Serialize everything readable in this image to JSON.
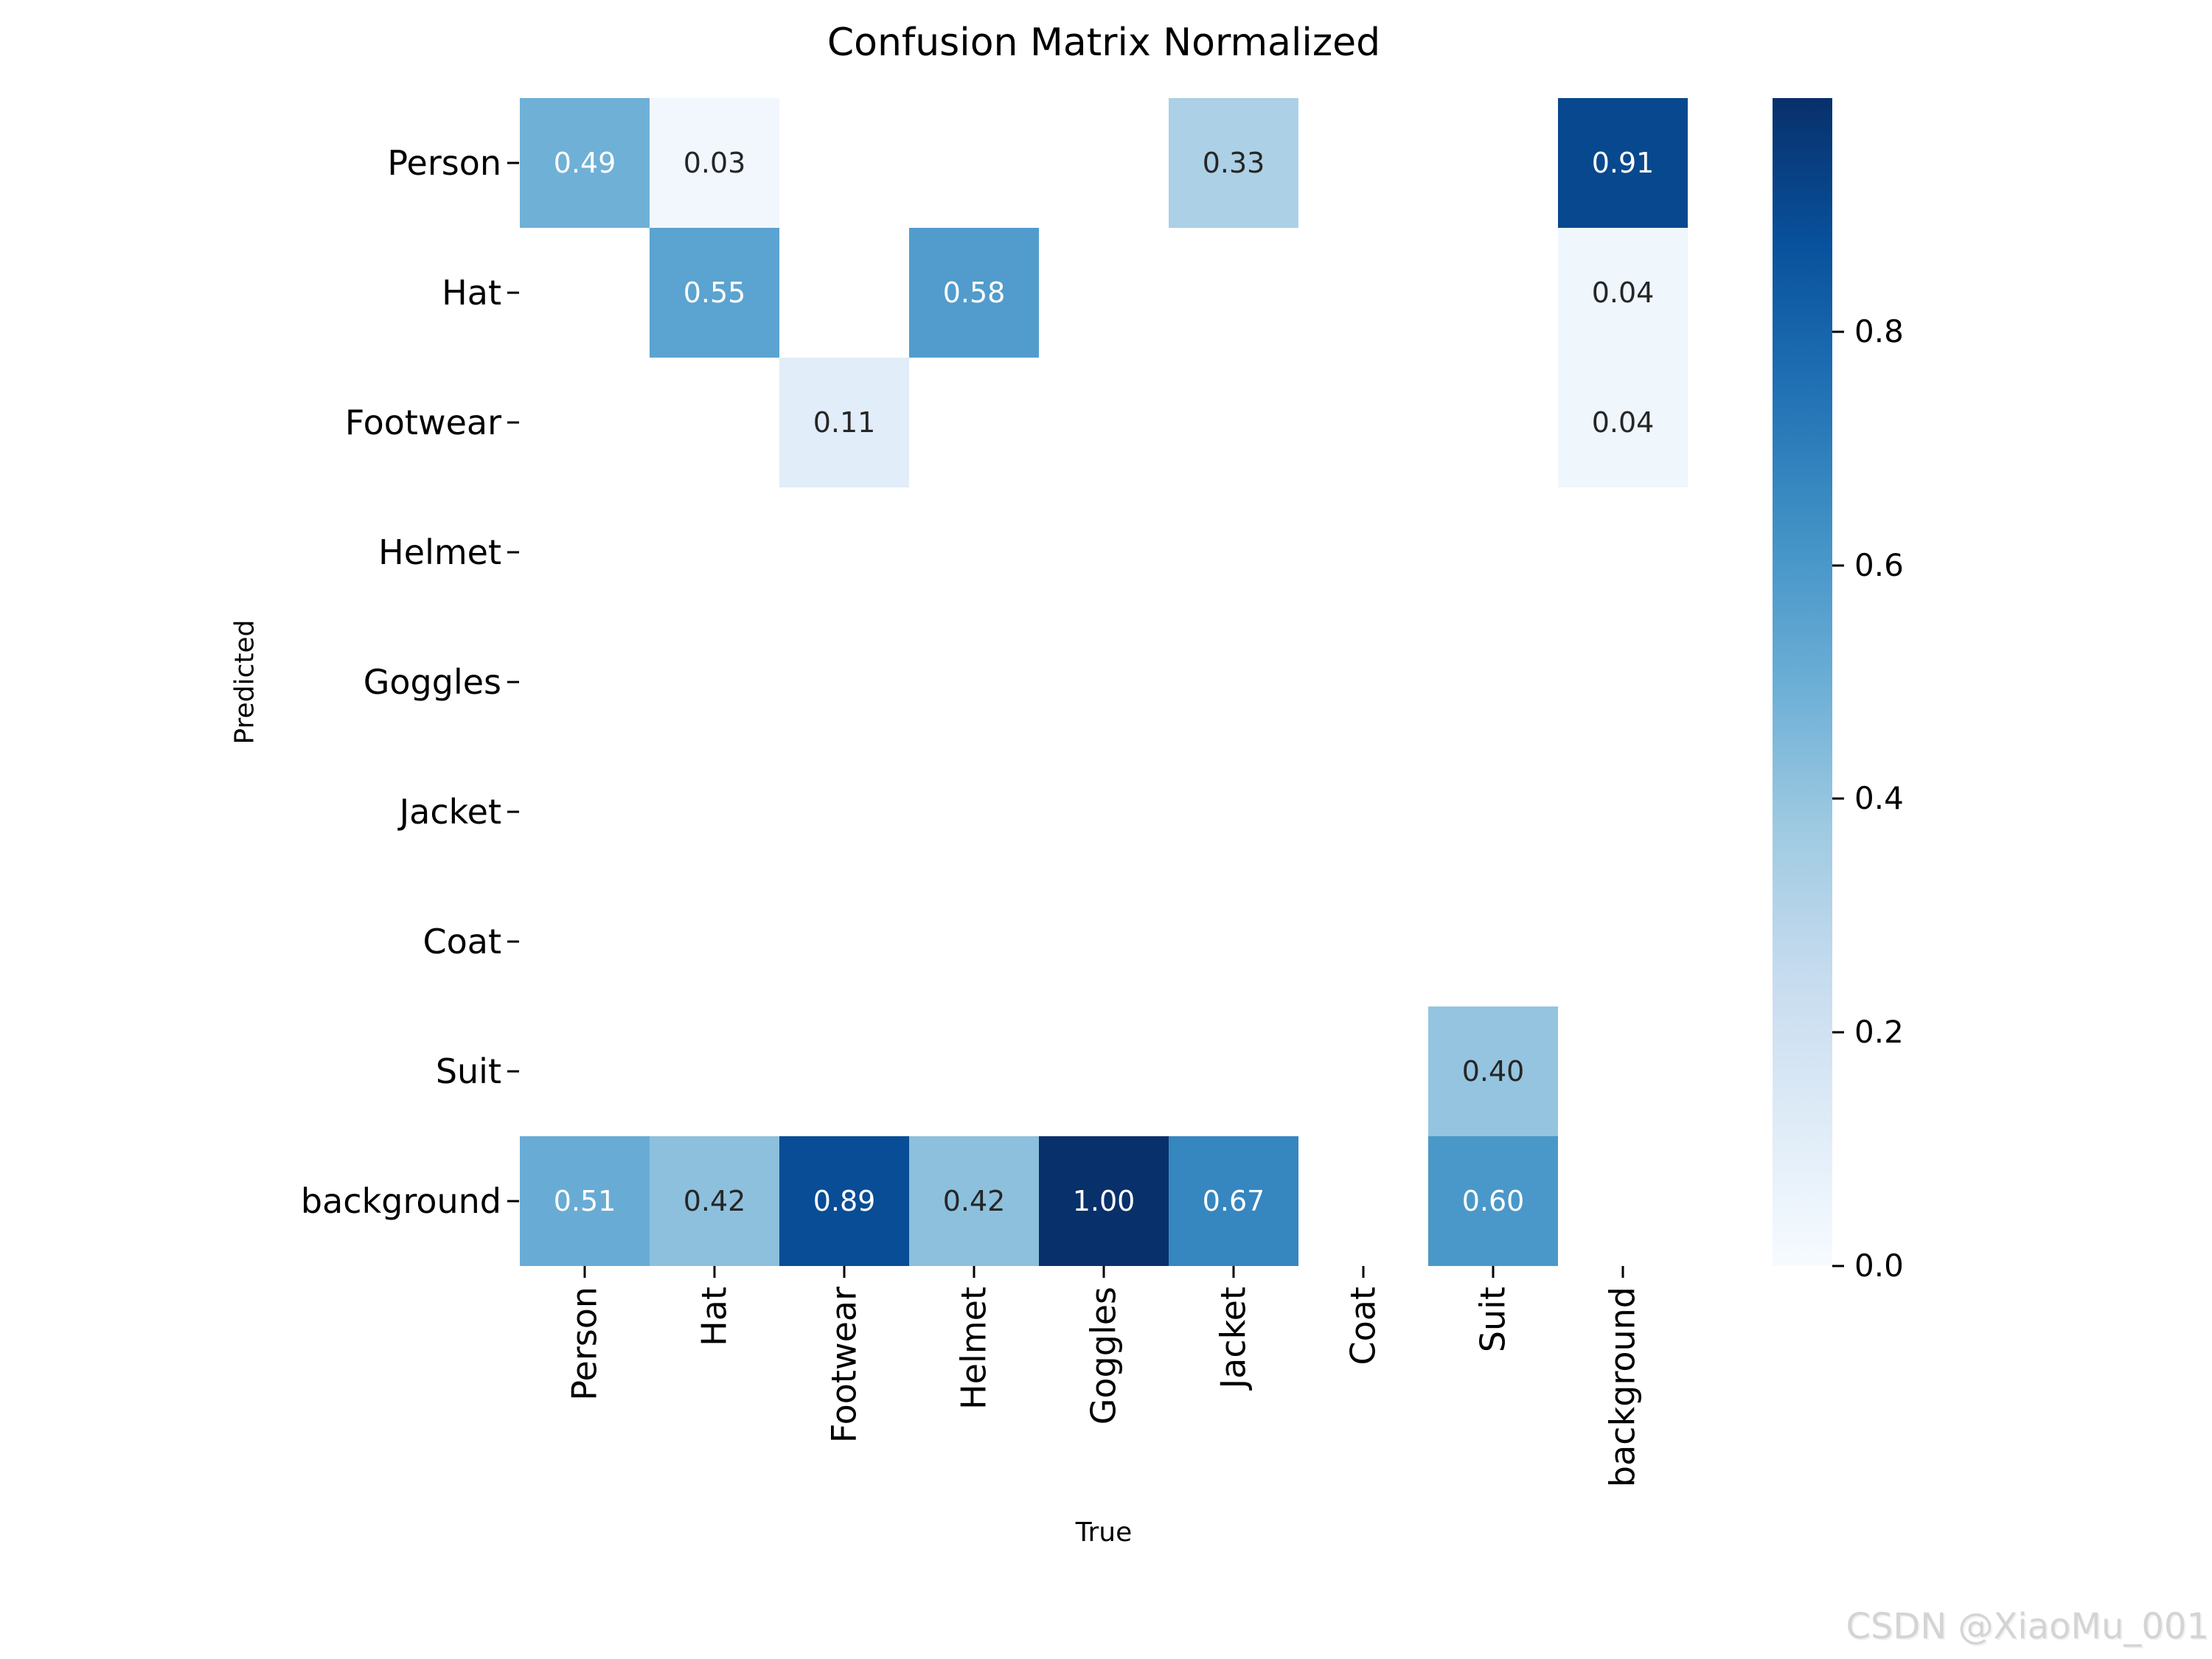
{
  "watermark": "CSDN @XiaoMu_001",
  "chart_data": {
    "type": "heatmap",
    "title": "Confusion Matrix Normalized",
    "xlabel": "True",
    "ylabel": "Predicted",
    "x_categories": [
      "Person",
      "Hat",
      "Footwear",
      "Helmet",
      "Goggles",
      "Jacket",
      "Coat",
      "Suit",
      "background"
    ],
    "y_categories": [
      "Person",
      "Hat",
      "Footwear",
      "Helmet",
      "Goggles",
      "Jacket",
      "Coat",
      "Suit",
      "background"
    ],
    "matrix": [
      [
        0.49,
        0.03,
        null,
        null,
        null,
        0.33,
        null,
        null,
        0.91
      ],
      [
        null,
        0.55,
        null,
        0.58,
        null,
        null,
        null,
        null,
        0.04
      ],
      [
        null,
        null,
        0.11,
        null,
        null,
        null,
        null,
        null,
        0.04
      ],
      [
        null,
        null,
        null,
        null,
        null,
        null,
        null,
        null,
        null
      ],
      [
        null,
        null,
        null,
        null,
        null,
        null,
        null,
        null,
        null
      ],
      [
        null,
        null,
        null,
        null,
        null,
        null,
        null,
        null,
        null
      ],
      [
        null,
        null,
        null,
        null,
        null,
        null,
        null,
        null,
        null
      ],
      [
        null,
        null,
        null,
        null,
        null,
        null,
        null,
        0.4,
        null
      ],
      [
        0.51,
        0.42,
        0.89,
        0.42,
        1.0,
        0.67,
        null,
        0.6,
        null
      ]
    ],
    "annotation_decimals": 2,
    "vmin": 0.0,
    "vmax": 1.0,
    "colormap": "Blues",
    "colormap_stops": [
      "#f7fbff",
      "#deebf7",
      "#c6dbef",
      "#9ecae1",
      "#6baed6",
      "#4292c6",
      "#2171b5",
      "#08519c",
      "#08306b"
    ],
    "empty_cell_color": "#ffffff",
    "annotation_dark_color": "#262626",
    "annotation_light_color": "#ffffff",
    "colorbar_ticks": [
      0.0,
      0.2,
      0.4,
      0.6,
      0.8
    ],
    "colorbar_position": "right",
    "grid": false,
    "legend": false
  }
}
